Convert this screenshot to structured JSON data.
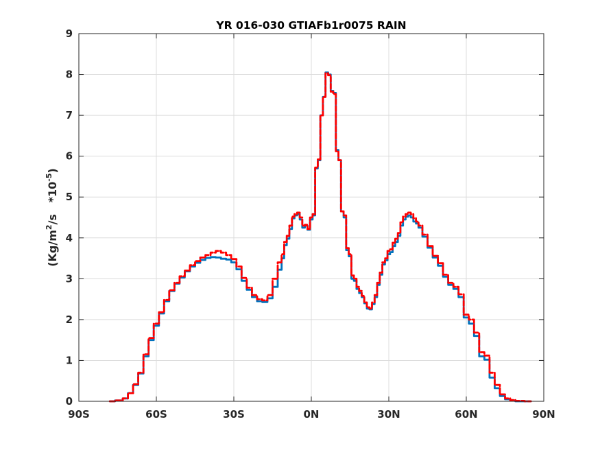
{
  "chart_data": {
    "type": "line",
    "title": "YR 016-030 GTIAFb1r0075 RAIN",
    "ylabel": {
      "prefix": "(Kg/m",
      "sup1": "2",
      "mid": "/s   *10",
      "sup2": "-5",
      "suffix": ")"
    },
    "xlim": [
      -90,
      90
    ],
    "ylim": [
      0,
      9
    ],
    "grid": true,
    "x_ticks": [
      -90,
      -60,
      -30,
      0,
      30,
      60,
      90
    ],
    "x_tick_labels": [
      "90S",
      "60S",
      "30S",
      "0N",
      "30N",
      "60N",
      "90N"
    ],
    "y_ticks": [
      0,
      1,
      2,
      3,
      4,
      5,
      6,
      7,
      8,
      9
    ],
    "y_tick_labels": [
      "0",
      "1",
      "2",
      "3",
      "4",
      "5",
      "6",
      "7",
      "8",
      "9"
    ],
    "series": [
      {
        "color": "#0072BD",
        "style": "solid",
        "points": [
          [
            -78,
            0.0
          ],
          [
            -74,
            0.02
          ],
          [
            -72,
            0.07
          ],
          [
            -70,
            0.2
          ],
          [
            -68,
            0.4
          ],
          [
            -66,
            0.68
          ],
          [
            -64,
            1.1
          ],
          [
            -62,
            1.5
          ],
          [
            -60,
            1.85
          ],
          [
            -58,
            2.15
          ],
          [
            -56,
            2.45
          ],
          [
            -54,
            2.7
          ],
          [
            -52,
            2.88
          ],
          [
            -50,
            3.03
          ],
          [
            -48,
            3.18
          ],
          [
            -46,
            3.3
          ],
          [
            -44,
            3.39
          ],
          [
            -42,
            3.46
          ],
          [
            -40,
            3.51
          ],
          [
            -38,
            3.53
          ],
          [
            -36,
            3.52
          ],
          [
            -34,
            3.49
          ],
          [
            -32,
            3.47
          ],
          [
            -30,
            3.4
          ],
          [
            -28,
            3.23
          ],
          [
            -26,
            2.95
          ],
          [
            -24,
            2.73
          ],
          [
            -22,
            2.55
          ],
          [
            -20,
            2.45
          ],
          [
            -18,
            2.43
          ],
          [
            -16,
            2.52
          ],
          [
            -14,
            2.8
          ],
          [
            -12,
            3.22
          ],
          [
            -11,
            3.5
          ],
          [
            -10,
            3.82
          ],
          [
            -9,
            3.98
          ],
          [
            -8,
            4.22
          ],
          [
            -7,
            4.48
          ],
          [
            -6,
            4.55
          ],
          [
            -5,
            4.58
          ],
          [
            -4,
            4.45
          ],
          [
            -3,
            4.25
          ],
          [
            -2,
            4.3
          ],
          [
            -1,
            4.2
          ],
          [
            0,
            4.45
          ],
          [
            1,
            4.55
          ],
          [
            2,
            5.7
          ],
          [
            3,
            5.9
          ],
          [
            4,
            7.0
          ],
          [
            5,
            7.45
          ],
          [
            6,
            8.05
          ],
          [
            7,
            8.0
          ],
          [
            8,
            7.6
          ],
          [
            9,
            7.55
          ],
          [
            10,
            6.15
          ],
          [
            11,
            5.9
          ],
          [
            12,
            4.65
          ],
          [
            13,
            4.5
          ],
          [
            14,
            3.7
          ],
          [
            15,
            3.55
          ],
          [
            16,
            3.0
          ],
          [
            17,
            2.95
          ],
          [
            18,
            2.75
          ],
          [
            19,
            2.65
          ],
          [
            20,
            2.55
          ],
          [
            21,
            2.4
          ],
          [
            22,
            2.27
          ],
          [
            23,
            2.25
          ],
          [
            24,
            2.38
          ],
          [
            25,
            2.55
          ],
          [
            26,
            2.85
          ],
          [
            27,
            3.1
          ],
          [
            28,
            3.35
          ],
          [
            29,
            3.45
          ],
          [
            30,
            3.6
          ],
          [
            31,
            3.65
          ],
          [
            32,
            3.8
          ],
          [
            33,
            3.9
          ],
          [
            34,
            4.05
          ],
          [
            35,
            4.3
          ],
          [
            36,
            4.45
          ],
          [
            37,
            4.52
          ],
          [
            38,
            4.55
          ],
          [
            39,
            4.5
          ],
          [
            40,
            4.4
          ],
          [
            41,
            4.35
          ],
          [
            42,
            4.25
          ],
          [
            44,
            4.03
          ],
          [
            46,
            3.76
          ],
          [
            48,
            3.52
          ],
          [
            50,
            3.32
          ],
          [
            52,
            3.05
          ],
          [
            54,
            2.85
          ],
          [
            56,
            2.75
          ],
          [
            58,
            2.55
          ],
          [
            60,
            2.05
          ],
          [
            62,
            1.9
          ],
          [
            64,
            1.6
          ],
          [
            66,
            1.1
          ],
          [
            68,
            1.02
          ],
          [
            70,
            0.58
          ],
          [
            72,
            0.32
          ],
          [
            74,
            0.13
          ],
          [
            76,
            0.05
          ],
          [
            78,
            0.02
          ],
          [
            80,
            0.0
          ],
          [
            85,
            0.0
          ]
        ]
      },
      {
        "color": "#FF0000",
        "style": "dashed",
        "points": [
          [
            -78,
            0.0
          ],
          [
            -74,
            0.02
          ],
          [
            -72,
            0.07
          ],
          [
            -70,
            0.2
          ],
          [
            -68,
            0.42
          ],
          [
            -66,
            0.7
          ],
          [
            -64,
            1.15
          ],
          [
            -62,
            1.55
          ],
          [
            -60,
            1.9
          ],
          [
            -58,
            2.18
          ],
          [
            -56,
            2.48
          ],
          [
            -54,
            2.72
          ],
          [
            -52,
            2.9
          ],
          [
            -50,
            3.06
          ],
          [
            -48,
            3.2
          ],
          [
            -46,
            3.33
          ],
          [
            -44,
            3.43
          ],
          [
            -42,
            3.52
          ],
          [
            -40,
            3.58
          ],
          [
            -38,
            3.64
          ],
          [
            -36,
            3.68
          ],
          [
            -34,
            3.64
          ],
          [
            -32,
            3.58
          ],
          [
            -30,
            3.48
          ],
          [
            -28,
            3.3
          ],
          [
            -26,
            3.02
          ],
          [
            -24,
            2.78
          ],
          [
            -22,
            2.6
          ],
          [
            -20,
            2.5
          ],
          [
            -18,
            2.47
          ],
          [
            -16,
            2.6
          ],
          [
            -14,
            3.0
          ],
          [
            -12,
            3.4
          ],
          [
            -11,
            3.6
          ],
          [
            -10,
            3.9
          ],
          [
            -9,
            4.05
          ],
          [
            -8,
            4.3
          ],
          [
            -7,
            4.52
          ],
          [
            -6,
            4.58
          ],
          [
            -5,
            4.62
          ],
          [
            -4,
            4.5
          ],
          [
            -3,
            4.3
          ],
          [
            -2,
            4.32
          ],
          [
            -1,
            4.22
          ],
          [
            0,
            4.5
          ],
          [
            1,
            4.58
          ],
          [
            2,
            5.72
          ],
          [
            3,
            5.92
          ],
          [
            4,
            7.0
          ],
          [
            5,
            7.45
          ],
          [
            6,
            8.03
          ],
          [
            7,
            7.98
          ],
          [
            8,
            7.58
          ],
          [
            9,
            7.52
          ],
          [
            10,
            6.12
          ],
          [
            11,
            5.9
          ],
          [
            12,
            4.65
          ],
          [
            13,
            4.55
          ],
          [
            14,
            3.75
          ],
          [
            15,
            3.6
          ],
          [
            16,
            3.08
          ],
          [
            17,
            3.0
          ],
          [
            18,
            2.8
          ],
          [
            19,
            2.7
          ],
          [
            20,
            2.58
          ],
          [
            21,
            2.42
          ],
          [
            22,
            2.3
          ],
          [
            23,
            2.27
          ],
          [
            24,
            2.42
          ],
          [
            25,
            2.6
          ],
          [
            26,
            2.9
          ],
          [
            27,
            3.15
          ],
          [
            28,
            3.4
          ],
          [
            29,
            3.5
          ],
          [
            30,
            3.68
          ],
          [
            31,
            3.72
          ],
          [
            32,
            3.88
          ],
          [
            33,
            3.98
          ],
          [
            34,
            4.12
          ],
          [
            35,
            4.38
          ],
          [
            36,
            4.52
          ],
          [
            37,
            4.58
          ],
          [
            38,
            4.62
          ],
          [
            39,
            4.58
          ],
          [
            40,
            4.48
          ],
          [
            41,
            4.4
          ],
          [
            42,
            4.3
          ],
          [
            44,
            4.08
          ],
          [
            46,
            3.8
          ],
          [
            48,
            3.56
          ],
          [
            50,
            3.38
          ],
          [
            52,
            3.1
          ],
          [
            54,
            2.9
          ],
          [
            56,
            2.8
          ],
          [
            58,
            2.62
          ],
          [
            60,
            2.12
          ],
          [
            62,
            2.0
          ],
          [
            64,
            1.68
          ],
          [
            66,
            1.2
          ],
          [
            68,
            1.12
          ],
          [
            70,
            0.7
          ],
          [
            72,
            0.4
          ],
          [
            74,
            0.17
          ],
          [
            76,
            0.07
          ],
          [
            78,
            0.03
          ],
          [
            80,
            0.01
          ],
          [
            85,
            0.0
          ]
        ]
      }
    ]
  }
}
